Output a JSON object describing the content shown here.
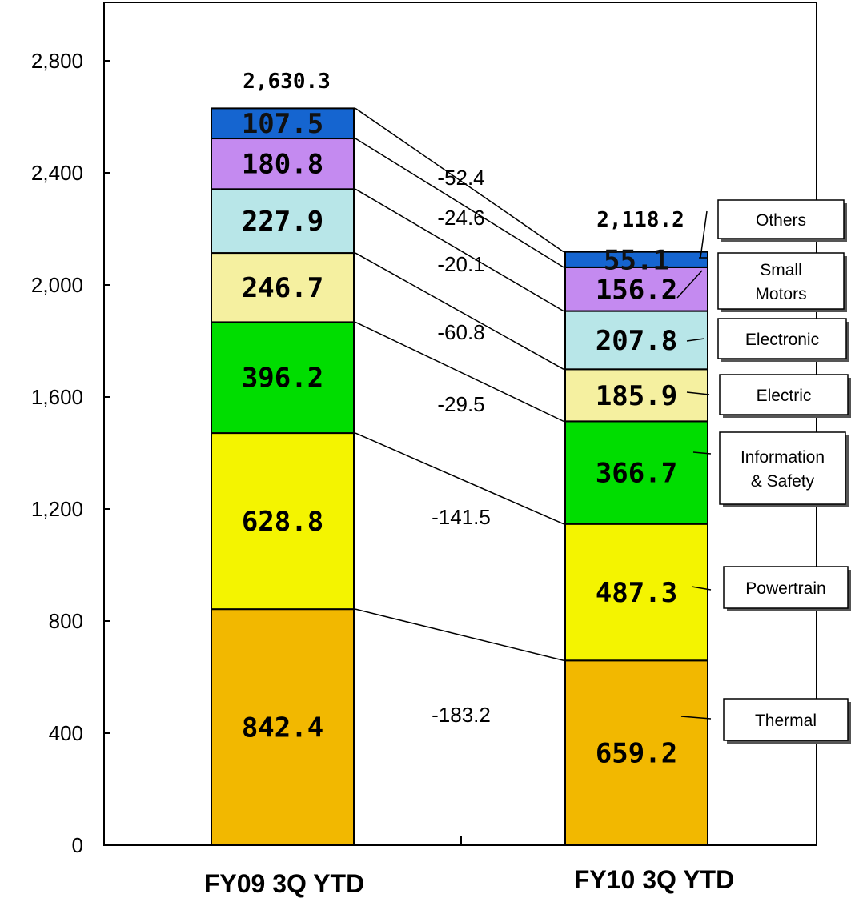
{
  "chart_data": {
    "type": "bar",
    "stacked": true,
    "categories": [
      "FY09 3Q YTD",
      "FY10 3Q YTD"
    ],
    "ylim": [
      0,
      3000
    ],
    "yticks": [
      "0",
      "400",
      "800",
      "1,200",
      "1,600",
      "2,000",
      "2,400",
      "2,800"
    ],
    "yticks_values": [
      0,
      400,
      800,
      1200,
      1600,
      2000,
      2400,
      2800
    ],
    "grid": false,
    "legend_placement": "right",
    "series": [
      {
        "name": "Thermal",
        "values": [
          842.4,
          659.2
        ],
        "labels": [
          "842.4",
          "659.2"
        ],
        "color": "#F2B800"
      },
      {
        "name": "Powertrain",
        "values": [
          628.8,
          487.3
        ],
        "labels": [
          "628.8",
          "487.3"
        ],
        "color": "#F4F400"
      },
      {
        "name": "Information\n& Safety",
        "values": [
          396.2,
          366.7
        ],
        "labels": [
          "396.2",
          "366.7"
        ],
        "color": "#00DD00"
      },
      {
        "name": "Electric",
        "values": [
          246.7,
          185.9
        ],
        "labels": [
          "246.7",
          "185.9"
        ],
        "color": "#F5F0A0"
      },
      {
        "name": "Electronic",
        "values": [
          227.9,
          207.8
        ],
        "labels": [
          "227.9",
          "207.8"
        ],
        "color": "#B8E6E8"
      },
      {
        "name": "Small\nMotors",
        "values": [
          180.8,
          156.2
        ],
        "labels": [
          "180.8",
          "156.2"
        ],
        "color": "#C48AF0"
      },
      {
        "name": "Others",
        "values": [
          107.5,
          55.1
        ],
        "labels": [
          "107.5",
          "55.1"
        ],
        "color": "#1565D0"
      }
    ],
    "totals": [
      "2,630.3",
      "2,118.2"
    ],
    "totals_values": [
      2630.3,
      2118.2
    ],
    "deltas": [
      "-183.2",
      "-141.5",
      "-29.5",
      "-60.8",
      "-20.1",
      "-24.6",
      "-52.4"
    ]
  }
}
